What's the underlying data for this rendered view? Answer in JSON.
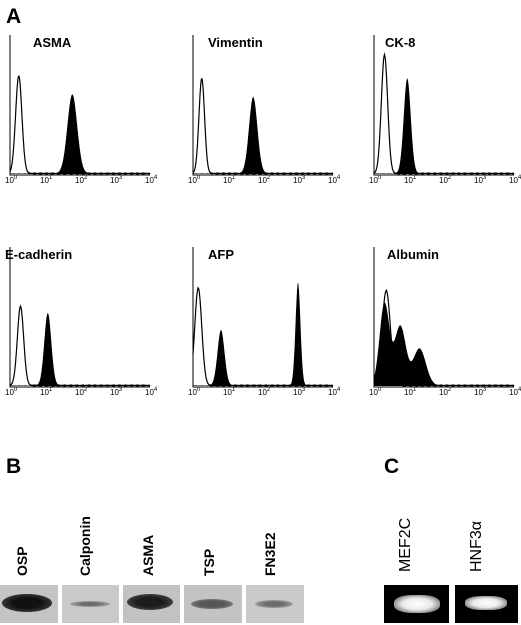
{
  "panel_a": {
    "letter": "A",
    "histograms": [
      {
        "title": "ASMA",
        "ticks": [
          "10",
          "10",
          "10",
          "10",
          "10"
        ],
        "exps": [
          "0",
          "1",
          "2",
          "3",
          "4"
        ]
      },
      {
        "title": "Vimentin",
        "ticks": [
          "10",
          "10",
          "10",
          "10",
          "10"
        ],
        "exps": [
          "0",
          "1",
          "2",
          "3",
          "4"
        ]
      },
      {
        "title": "CK-8",
        "ticks": [
          "10",
          "10",
          "10",
          "10",
          "10"
        ],
        "exps": [
          "0",
          "1",
          "2",
          "3",
          "4"
        ]
      },
      {
        "title": "E-cadherin",
        "ticks": [
          "10",
          "10",
          "10",
          "10",
          "10"
        ],
        "exps": [
          "0",
          "1",
          "2",
          "3",
          "4"
        ]
      },
      {
        "title": "AFP",
        "ticks": [
          "10",
          "10",
          "10",
          "10",
          "10"
        ],
        "exps": [
          "0",
          "1",
          "2",
          "3",
          "4"
        ]
      },
      {
        "title": "Albumin",
        "ticks": [
          "10",
          "10",
          "10",
          "10",
          "10"
        ],
        "exps": [
          "0",
          "1",
          "2",
          "3",
          "4"
        ]
      }
    ]
  },
  "panel_b": {
    "letter": "B",
    "lanes": [
      {
        "label": "OSP",
        "band_strength": "strong"
      },
      {
        "label": "Calponin",
        "band_strength": "faint"
      },
      {
        "label": "ASMA",
        "band_strength": "strong"
      },
      {
        "label": "TSP",
        "band_strength": "medium"
      },
      {
        "label": "FN3E2",
        "band_strength": "weak"
      }
    ]
  },
  "panel_c": {
    "letter": "C",
    "lanes": [
      {
        "label": "MEF2C"
      },
      {
        "label": "HNF3α"
      }
    ]
  }
}
